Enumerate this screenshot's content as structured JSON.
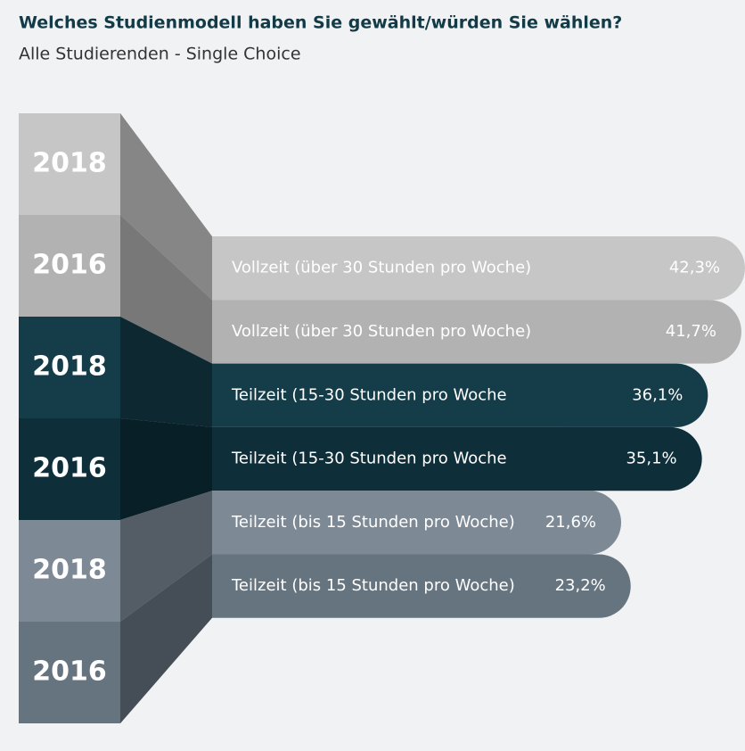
{
  "chart_data": {
    "type": "bar",
    "title": "Welches Studienmodell haben Sie gewählt/würden Sie wählen?",
    "subtitle": "Alle Studierenden - Single Choice",
    "years": [
      "2018",
      "2016",
      "2018",
      "2016",
      "2018",
      "2016"
    ],
    "categories": [
      "Vollzeit (über 30 Stunden pro Woche)",
      "Vollzeit (über 30 Stunden pro Woche)",
      "Teilzeit (15-30 Stunden pro Woche",
      "Teilzeit (15-30 Stunden pro Woche",
      "Teilzeit (bis 15 Stunden pro Woche)",
      "Teilzeit (bis 15 Stunden pro Woche)"
    ],
    "values": [
      42.3,
      41.7,
      36.1,
      35.1,
      21.6,
      23.2
    ],
    "value_labels": [
      "42,3%",
      "41,7%",
      "36,1%",
      "35,1%",
      "21,6%",
      "23,2%"
    ],
    "colors": [
      "#c6c6c6",
      "#b2b2b2",
      "#143c49",
      "#0e2f3a",
      "#7d8a96",
      "#66747f"
    ]
  }
}
